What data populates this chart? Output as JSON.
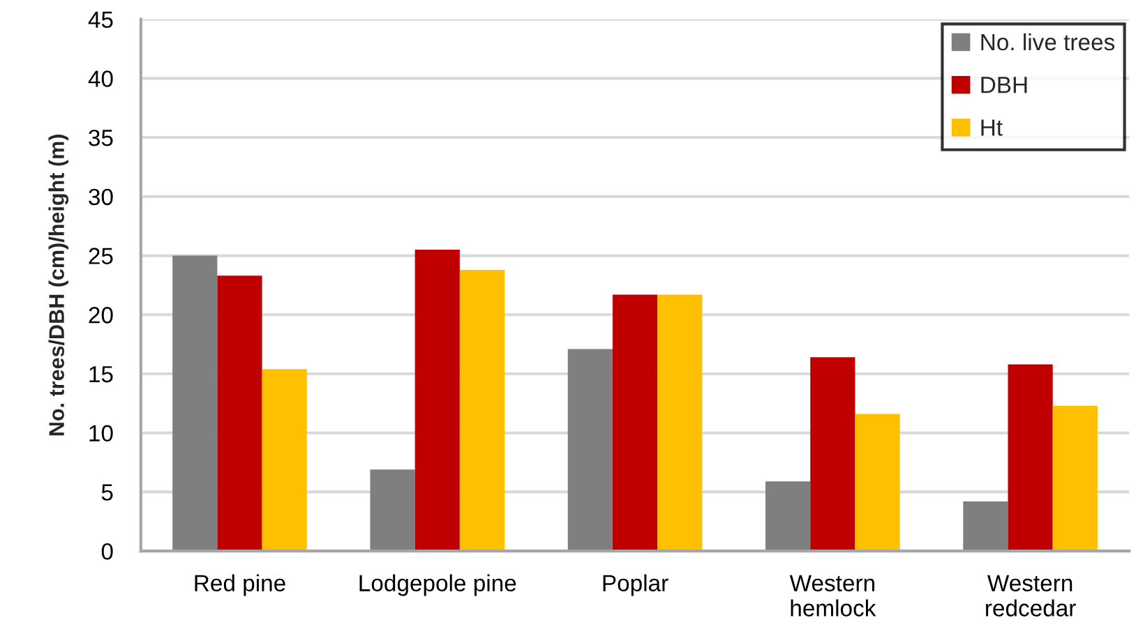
{
  "chart_data": {
    "type": "bar",
    "ylabel": "No. trees/DBH (cm)/height (m)",
    "categories": [
      "Red pine",
      "Lodgepole pine",
      "Poplar",
      "Western\nhemlock",
      "Western\nredcedar"
    ],
    "series": [
      {
        "name": "No. live trees",
        "color": "#7f7f7f",
        "values": [
          25.0,
          6.9,
          17.1,
          5.9,
          4.2
        ]
      },
      {
        "name": "DBH",
        "color": "#c00000",
        "values": [
          23.3,
          25.5,
          21.7,
          16.4,
          15.8
        ]
      },
      {
        "name": "Ht",
        "color": "#ffc000",
        "values": [
          15.4,
          23.8,
          21.7,
          11.6,
          12.3
        ]
      }
    ],
    "ylim": [
      0,
      45
    ],
    "yticks": [
      0,
      5,
      10,
      15,
      20,
      25,
      30,
      35,
      40,
      45
    ],
    "grid": "y",
    "legend": "top right"
  }
}
